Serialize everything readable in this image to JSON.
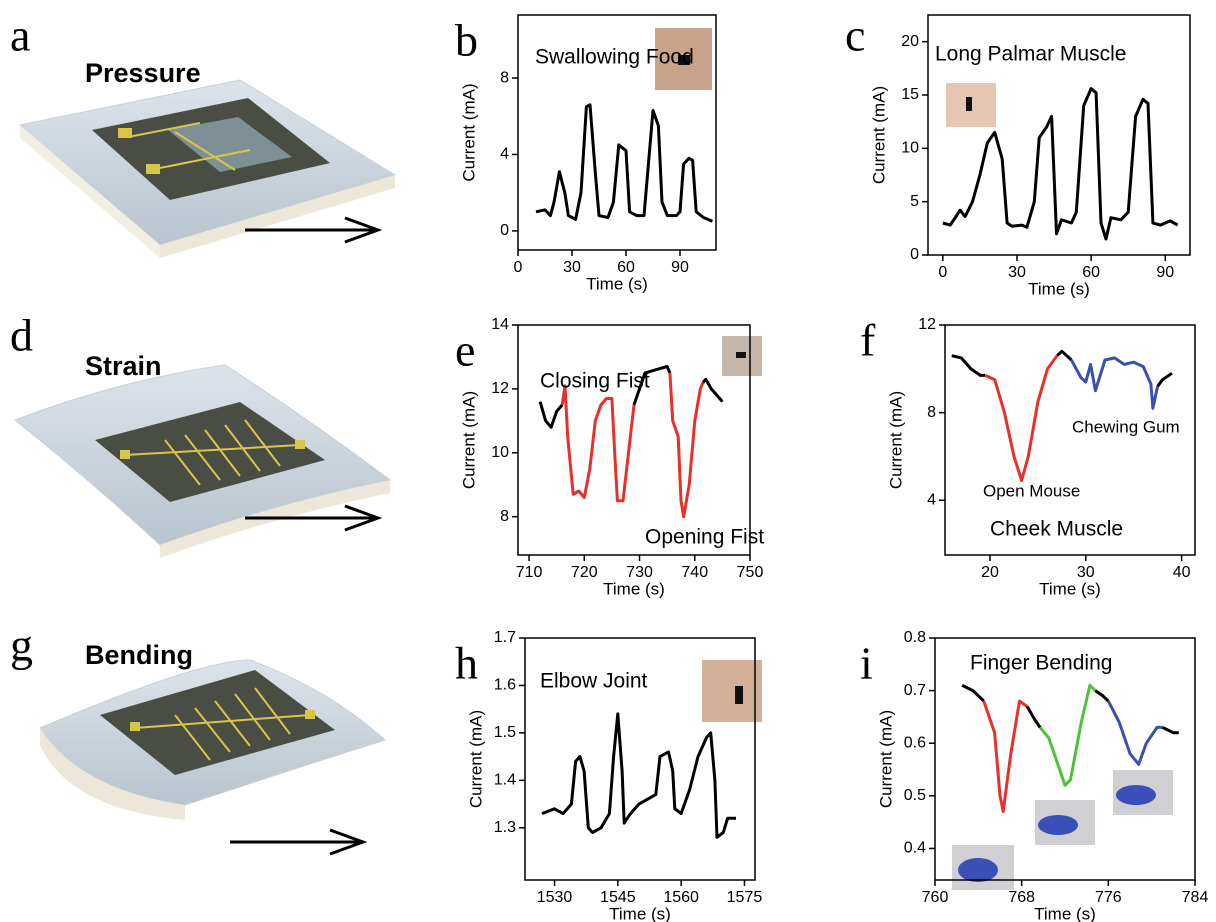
{
  "illustrations": [
    {
      "label": "a",
      "title": "Pressure"
    },
    {
      "label": "d",
      "title": "Strain"
    },
    {
      "label": "g",
      "title": "Bending"
    }
  ],
  "chart_data": [
    {
      "type": "line",
      "panel": "b",
      "xlabel": "Time (s)",
      "ylabel": "Current (mA)",
      "annotations": [
        {
          "text": "Swallowing Food",
          "color": "#000000"
        }
      ],
      "xlim": [
        0,
        110
      ],
      "ylim": [
        -1,
        11.3
      ],
      "xticks": [
        0,
        30,
        60,
        90
      ],
      "yticks": [
        0,
        4,
        8
      ],
      "series": [
        {
          "color": "#000000",
          "x": [
            10,
            15,
            18,
            20,
            23,
            26,
            28,
            32,
            35,
            38,
            40,
            43,
            45,
            50,
            53,
            56,
            60,
            62,
            66,
            70,
            72,
            75,
            78,
            80,
            83,
            88,
            90,
            92,
            95,
            97,
            99,
            103,
            108
          ],
          "values": [
            1,
            1.1,
            0.8,
            1.5,
            3.1,
            2,
            0.8,
            0.6,
            2,
            6.5,
            6.6,
            3,
            0.8,
            0.7,
            1.5,
            4.5,
            4.2,
            1,
            0.8,
            0.8,
            3,
            6.3,
            5.5,
            1.5,
            0.8,
            0.8,
            1,
            3.5,
            3.8,
            3.7,
            1,
            0.7,
            0.5
          ]
        }
      ]
    },
    {
      "type": "line",
      "panel": "c",
      "xlabel": "Time (s)",
      "ylabel": "Current (mA)",
      "annotations": [
        {
          "text": "Long Palmar Muscle",
          "color": "#000000"
        }
      ],
      "xlim": [
        -6,
        100
      ],
      "ylim": [
        0,
        22.5
      ],
      "xticks": [
        0,
        30,
        60,
        90
      ],
      "yticks": [
        0,
        5,
        10,
        15,
        20
      ],
      "series": [
        {
          "color": "#000000",
          "x": [
            0,
            3,
            5,
            7,
            9,
            12,
            15,
            18,
            21,
            24,
            26,
            28,
            32,
            34,
            37,
            39,
            42,
            44,
            46,
            48,
            52,
            54,
            57,
            60,
            62,
            64,
            66,
            68,
            72,
            75,
            78,
            81,
            83,
            85,
            88,
            92,
            95
          ],
          "values": [
            3,
            2.8,
            3.5,
            4.2,
            3.6,
            5,
            7.5,
            10.5,
            11.5,
            9,
            3,
            2.7,
            2.8,
            2.6,
            5,
            11,
            12,
            13,
            2,
            3.3,
            3,
            4,
            14,
            15.6,
            15.2,
            3,
            1.5,
            3.5,
            3.3,
            4,
            13,
            14.6,
            14.2,
            3,
            2.8,
            3.2,
            2.8
          ]
        }
      ]
    },
    {
      "type": "line",
      "panel": "e",
      "xlabel": "Time (s)",
      "ylabel": "Current (mA)",
      "annotations": [
        {
          "text": "Closing Fist",
          "color": "#000000"
        },
        {
          "text": "Opening Fist",
          "color": "#000000"
        }
      ],
      "xlim": [
        708,
        750
      ],
      "ylim": [
        6.8,
        14
      ],
      "xticks": [
        710,
        720,
        730,
        740,
        750
      ],
      "yticks": [
        8,
        10,
        12,
        14
      ],
      "series": [
        {
          "color": "#000000",
          "x": [
            712,
            713,
            714,
            715,
            716
          ],
          "values": [
            11.6,
            11,
            10.8,
            11.3,
            11.5
          ]
        },
        {
          "color": "#e8302a",
          "x": [
            716,
            716.5,
            717,
            718,
            719,
            720,
            721,
            722,
            723,
            724,
            725,
            725.5,
            726,
            727,
            728,
            729
          ],
          "values": [
            11.5,
            12.1,
            10.5,
            8.7,
            8.8,
            8.6,
            9.5,
            11,
            11.5,
            11.7,
            11.7,
            10,
            8.5,
            8.5,
            10,
            11.5
          ]
        },
        {
          "color": "#000000",
          "x": [
            729,
            730,
            731,
            733,
            735,
            735.5
          ],
          "values": [
            11.5,
            12,
            12.5,
            12.6,
            12.7,
            12.5
          ]
        },
        {
          "color": "#e8302a",
          "x": [
            735.5,
            736,
            737,
            737.5,
            738,
            739,
            740,
            741,
            741.5
          ],
          "values": [
            12.5,
            11,
            10.5,
            8.5,
            8,
            9,
            11,
            12,
            12.2
          ]
        },
        {
          "color": "#000000",
          "x": [
            741.5,
            742,
            743,
            744,
            745
          ],
          "values": [
            12.2,
            12.3,
            12,
            11.8,
            11.6
          ]
        }
      ]
    },
    {
      "type": "line",
      "panel": "f",
      "xlabel": "Time (s)",
      "ylabel": "Current (mA)",
      "annotations": [
        {
          "text": "Open Mouse",
          "color": "#e8302a"
        },
        {
          "text": "Chewing Gum",
          "color": "#3a50b0"
        },
        {
          "text": "Cheek Muscle",
          "color": "#000000"
        }
      ],
      "xlim": [
        15.3,
        41.4
      ],
      "ylim": [
        1.5,
        12
      ],
      "xticks": [
        20,
        30,
        40
      ],
      "yticks": [
        4,
        8,
        12
      ],
      "series": [
        {
          "color": "#000000",
          "x": [
            16,
            17,
            18,
            19,
            19.5
          ],
          "values": [
            10.6,
            10.5,
            10,
            9.7,
            9.7
          ]
        },
        {
          "color": "#e8302a",
          "x": [
            19.5,
            20.5,
            21.5,
            22.5,
            23.3,
            24,
            25,
            26,
            27
          ],
          "values": [
            9.7,
            9.5,
            8,
            6,
            4.9,
            6,
            8.5,
            10,
            10.6
          ]
        },
        {
          "color": "#000000",
          "x": [
            27,
            27.5,
            28.5
          ],
          "values": [
            10.6,
            10.8,
            10.4
          ]
        },
        {
          "color": "#3a50b0",
          "x": [
            28.5,
            29.5,
            30,
            30.5,
            31,
            32,
            33,
            34,
            35,
            36,
            36.8,
            37,
            37.5
          ],
          "values": [
            10.4,
            9.6,
            9.4,
            10.2,
            9,
            10.4,
            10.5,
            10.2,
            10.3,
            10.1,
            9.3,
            8.2,
            9.2
          ]
        },
        {
          "color": "#000000",
          "x": [
            37.5,
            38,
            39
          ],
          "values": [
            9.2,
            9.5,
            9.8
          ]
        }
      ]
    },
    {
      "type": "line",
      "panel": "h",
      "xlabel": "Time (s)",
      "ylabel": "Current (mA)",
      "annotations": [
        {
          "text": "Elbow Joint",
          "color": "#000000"
        }
      ],
      "xlim": [
        1523,
        1577.5
      ],
      "ylim": [
        1.19,
        1.7
      ],
      "xticks": [
        1530,
        1545,
        1560,
        1575
      ],
      "yticks": [
        1.3,
        1.4,
        1.5,
        1.6,
        1.7
      ],
      "series": [
        {
          "color": "#000000",
          "x": [
            1527,
            1530,
            1532,
            1534,
            1535,
            1536,
            1537,
            1538,
            1539,
            1541,
            1543,
            1544,
            1545,
            1546,
            1546.5,
            1548,
            1550,
            1552,
            1554,
            1555,
            1557,
            1558,
            1558.5,
            1560,
            1562,
            1564,
            1566,
            1567,
            1568,
            1568.5,
            1570,
            1571,
            1573
          ],
          "values": [
            1.33,
            1.34,
            1.33,
            1.35,
            1.44,
            1.45,
            1.42,
            1.3,
            1.29,
            1.3,
            1.33,
            1.45,
            1.54,
            1.42,
            1.31,
            1.33,
            1.35,
            1.36,
            1.37,
            1.45,
            1.46,
            1.42,
            1.34,
            1.33,
            1.38,
            1.45,
            1.49,
            1.5,
            1.4,
            1.28,
            1.29,
            1.32,
            1.32
          ]
        }
      ]
    },
    {
      "type": "line",
      "panel": "i",
      "xlabel": "Time (s)",
      "ylabel": "Current (mA)",
      "annotations": [
        {
          "text": "Finger Bending",
          "color": "#000000"
        }
      ],
      "xlim": [
        760,
        784
      ],
      "ylim": [
        0.34,
        0.8
      ],
      "xticks": [
        760,
        768,
        776,
        784
      ],
      "yticks": [
        0.4,
        0.5,
        0.6,
        0.7,
        0.8
      ],
      "series": [
        {
          "color": "#000000",
          "x": [
            762.5,
            763.5,
            764.5
          ],
          "values": [
            0.71,
            0.7,
            0.68
          ]
        },
        {
          "color": "#e8302a",
          "x": [
            764.5,
            765.5,
            766,
            766.3,
            767,
            767.8,
            768.5
          ],
          "values": [
            0.68,
            0.62,
            0.5,
            0.47,
            0.58,
            0.68,
            0.67
          ]
        },
        {
          "color": "#000000",
          "x": [
            768.5,
            769.2,
            769.7
          ],
          "values": [
            0.67,
            0.645,
            0.63
          ]
        },
        {
          "color": "#4cc23a",
          "x": [
            769.7,
            770.5,
            771.5,
            772,
            772.5,
            773.5,
            774.3,
            774.8
          ],
          "values": [
            0.63,
            0.61,
            0.55,
            0.52,
            0.53,
            0.64,
            0.71,
            0.7
          ]
        },
        {
          "color": "#000000",
          "x": [
            774.8,
            775.5,
            776
          ],
          "values": [
            0.7,
            0.69,
            0.68
          ]
        },
        {
          "color": "#3a50b0",
          "x": [
            776,
            777,
            778,
            778.8,
            779.5,
            780.5,
            781
          ],
          "values": [
            0.68,
            0.64,
            0.58,
            0.56,
            0.6,
            0.63,
            0.63
          ]
        },
        {
          "color": "#000000",
          "x": [
            781,
            782,
            782.5
          ],
          "values": [
            0.63,
            0.62,
            0.62
          ]
        }
      ]
    }
  ]
}
